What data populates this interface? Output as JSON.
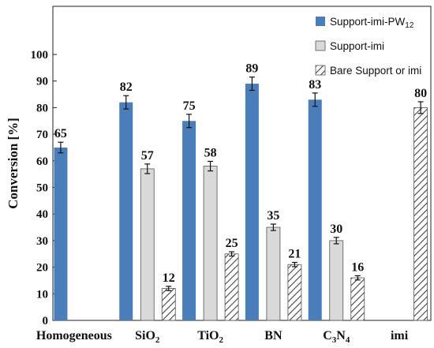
{
  "chart_data": {
    "type": "bar",
    "title": "",
    "xlabel": "",
    "ylabel": "Conversion [%]",
    "ylim": [
      0,
      100
    ],
    "yticks": [
      0,
      10,
      20,
      30,
      40,
      50,
      60,
      70,
      80,
      90,
      100
    ],
    "categories": [
      {
        "base": "Homogeneous",
        "sub": ""
      },
      {
        "base": "SiO",
        "sub": "2"
      },
      {
        "base": "TiO",
        "sub": "2"
      },
      {
        "base": "BN",
        "sub": ""
      },
      {
        "base": "C",
        "sub": "3",
        "base2": "N",
        "sub2": "4"
      },
      {
        "base": "imi",
        "sub": ""
      }
    ],
    "series": [
      {
        "name": "Support-imi-PW",
        "name_sub": "12",
        "color": "#4a7ebb",
        "pattern": "solid",
        "values": [
          65,
          82,
          75,
          89,
          83,
          null
        ],
        "errors": [
          2,
          2.5,
          2.5,
          2.5,
          2.5,
          null
        ]
      },
      {
        "name": "Support-imi",
        "name_sub": "",
        "color": "#d9d9d9",
        "pattern": "solid",
        "values": [
          null,
          57,
          58,
          35,
          30,
          null
        ],
        "errors": [
          null,
          1.8,
          1.8,
          1.2,
          1.2,
          null
        ]
      },
      {
        "name": "Bare Support or imi",
        "name_sub": "",
        "color": "#ffffff",
        "pattern": "hatch",
        "values": [
          null,
          12,
          25,
          21,
          16,
          80
        ],
        "errors": [
          null,
          0.8,
          0.8,
          0.8,
          0.8,
          2.2
        ]
      }
    ],
    "legend_position": "top-right",
    "grid": false
  }
}
